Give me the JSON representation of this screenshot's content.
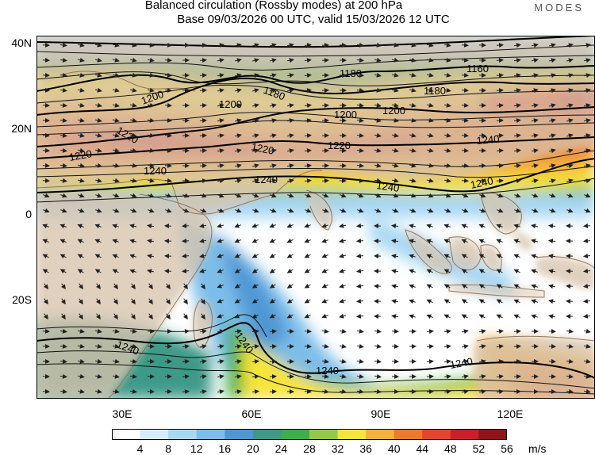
{
  "header": {
    "title_line1": "Balanced circulation (Rossby modes) at 200 hPa",
    "title_line2": "Base 09/03/2026 00 UTC, valid 15/03/2026 12 UTC",
    "brand": "MODES"
  },
  "map": {
    "lat_labels": [
      "40N",
      "20N",
      "0",
      "20S"
    ],
    "lon_labels": [
      "30E",
      "60E",
      "90E",
      "120E"
    ],
    "contour_labels": [
      "1160",
      "1180",
      "1180",
      "1180",
      "1200",
      "1200",
      "1200",
      "1200",
      "1220",
      "1220",
      "1220",
      "1220",
      "1240",
      "1240",
      "1240",
      "1240",
      "1240",
      "1240",
      "1240",
      "1240",
      "1240"
    ],
    "land_color": "#d8c4ad",
    "ocean_color": "#ffffff",
    "contour_color": "#000000"
  },
  "colorbar": {
    "ticks": [
      "4",
      "8",
      "12",
      "16",
      "20",
      "24",
      "28",
      "32",
      "36",
      "40",
      "44",
      "48",
      "52",
      "56"
    ],
    "colors": [
      "#ffffff",
      "#d4ecfb",
      "#a9d8f5",
      "#7dbde9",
      "#4f97d4",
      "#3e9a88",
      "#3fae48",
      "#93c94a",
      "#f6e43a",
      "#f5b13c",
      "#ec7a2e",
      "#e2452a",
      "#c91f26",
      "#8e1419"
    ],
    "unit": "m/s"
  }
}
